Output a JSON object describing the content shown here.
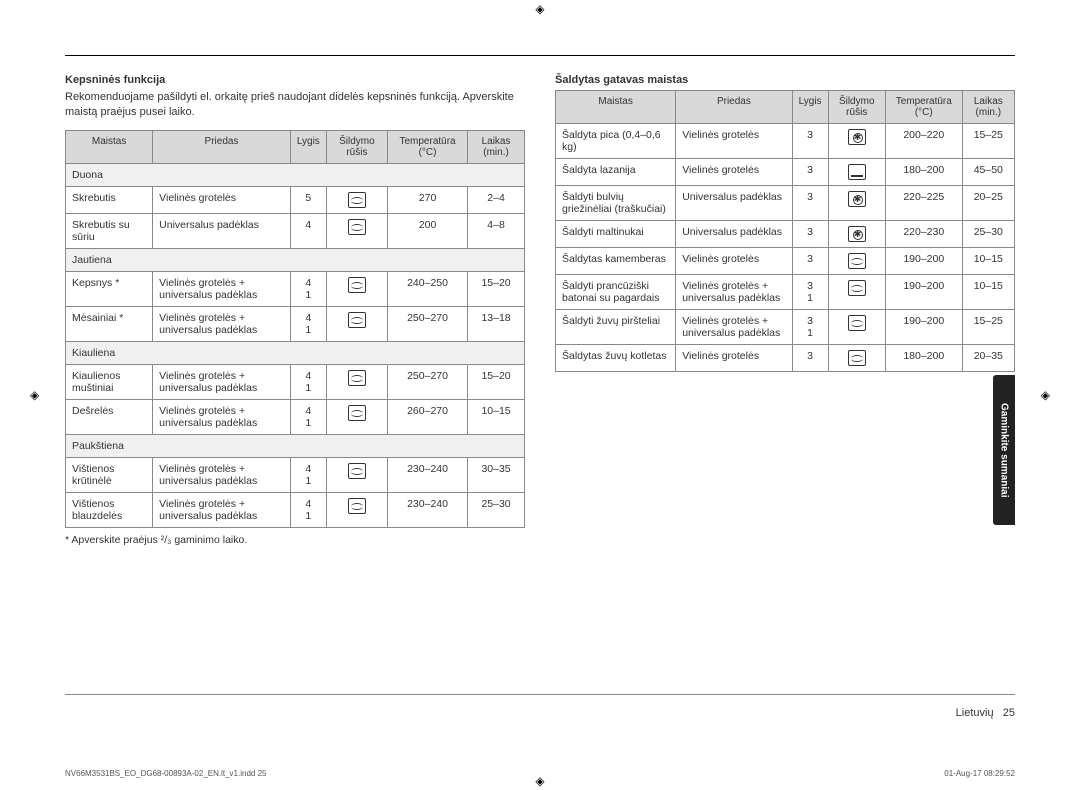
{
  "crop_marks": {
    "glyph": "◈"
  },
  "left_section": {
    "title": "Kepsninės funkcija",
    "intro": "Rekomenduojame pašildyti el. orkaitę prieš naudojant didelės kepsninės funkciją. Apverskite maistą praėjus pusei laiko.",
    "headers": [
      "Maistas",
      "Priedas",
      "Lygis",
      "Šildymo rūšis",
      "Temperatūra (°C)",
      "Laikas (min.)"
    ],
    "categories": [
      {
        "name": "Duona",
        "rows": [
          {
            "food": "Skrebutis",
            "acc": "Vielinės grotelės",
            "level": "5",
            "icon": "wave",
            "temp": "270",
            "time": "2–4"
          },
          {
            "food": "Skrebutis su sūriu",
            "acc": "Universalus padėklas",
            "level": "4",
            "icon": "wave",
            "temp": "200",
            "time": "4–8"
          }
        ]
      },
      {
        "name": "Jautiena",
        "rows": [
          {
            "food": "Kepsnys *",
            "acc": "Vielinės grotelės + universalus padėklas",
            "level": "4\n1",
            "icon": "wave",
            "temp": "240–250",
            "time": "15–20"
          },
          {
            "food": "Mėsainiai *",
            "acc": "Vielinės grotelės + universalus padėklas",
            "level": "4\n1",
            "icon": "wave",
            "temp": "250–270",
            "time": "13–18"
          }
        ]
      },
      {
        "name": "Kiauliena",
        "rows": [
          {
            "food": "Kiaulienos muštiniai",
            "acc": "Vielinės grotelės + universalus padėklas",
            "level": "4\n1",
            "icon": "wave",
            "temp": "250–270",
            "time": "15–20"
          },
          {
            "food": "Dešrelės",
            "acc": "Vielinės grotelės + universalus padėklas",
            "level": "4\n1",
            "icon": "wave",
            "temp": "260–270",
            "time": "10–15"
          }
        ]
      },
      {
        "name": "Paukštiena",
        "rows": [
          {
            "food": "Vištienos krūtinėlė",
            "acc": "Vielinės grotelės + universalus padėklas",
            "level": "4\n1",
            "icon": "wave",
            "temp": "230–240",
            "time": "30–35"
          },
          {
            "food": "Vištienos blauzdelės",
            "acc": "Vielinės grotelės + universalus padėklas",
            "level": "4\n1",
            "icon": "wave",
            "temp": "230–240",
            "time": "25–30"
          }
        ]
      }
    ],
    "footnote": "* Apverskite praėjus ²/₃ gaminimo laiko."
  },
  "right_section": {
    "title": "Šaldytas gatavas maistas",
    "headers": [
      "Maistas",
      "Priedas",
      "Lygis",
      "Šildymo rūšis",
      "Temperatūra (°C)",
      "Laikas (min.)"
    ],
    "rows": [
      {
        "food": "Šaldyta pica (0,4–0,6 kg)",
        "acc": "Vielinės grotelės",
        "level": "3",
        "icon": "fan",
        "temp": "200–220",
        "time": "15–25"
      },
      {
        "food": "Šaldyta lazanija",
        "acc": "Vielinės grotelės",
        "level": "3",
        "icon": "bottom",
        "temp": "180–200",
        "time": "45–50"
      },
      {
        "food": "Šaldyti bulvių griežinėliai (traškučiai)",
        "acc": "Universalus padėklas",
        "level": "3",
        "icon": "fan",
        "temp": "220–225",
        "time": "20–25"
      },
      {
        "food": "Šaldyti maltinukai",
        "acc": "Universalus padėklas",
        "level": "3",
        "icon": "fan",
        "temp": "220–230",
        "time": "25–30"
      },
      {
        "food": "Šaldytas kamemberas",
        "acc": "Vielinės grotelės",
        "level": "3",
        "icon": "wave",
        "temp": "190–200",
        "time": "10–15"
      },
      {
        "food": "Šaldyti prancūziški batonai su pagardais",
        "acc": "Vielinės grotelės + universalus padėklas",
        "level": "3\n1",
        "icon": "wave",
        "temp": "190–200",
        "time": "10–15"
      },
      {
        "food": "Šaldyti žuvų piršteliai",
        "acc": "Vielinės grotelės + universalus padėklas",
        "level": "3\n1",
        "icon": "wave",
        "temp": "190–200",
        "time": "15–25"
      },
      {
        "food": "Šaldytas žuvų kotletas",
        "acc": "Vielinės grotelės",
        "level": "3",
        "icon": "wave",
        "temp": "180–200",
        "time": "20–35"
      }
    ]
  },
  "side_tab": "Gaminkite sumaniai",
  "page_label": "Lietuvių",
  "page_number": "25",
  "imprint_left": "NV66M3531BS_EO_DG68-00893A-02_EN.lt_v1.indd   25",
  "imprint_right": "01-Aug-17   08:29:52"
}
